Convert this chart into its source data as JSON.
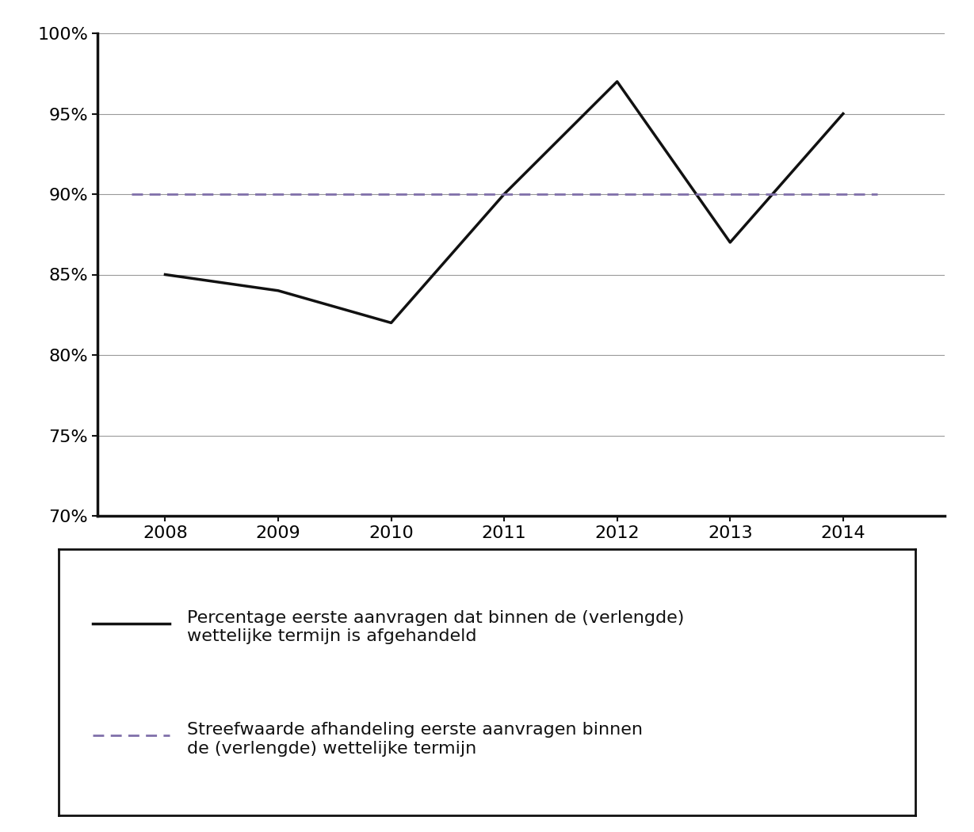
{
  "years": [
    2008,
    2009,
    2010,
    2011,
    2012,
    2013,
    2014
  ],
  "actual_values": [
    0.85,
    0.84,
    0.82,
    0.9,
    0.97,
    0.87,
    0.95
  ],
  "target_value": 0.9,
  "ylim": [
    0.7,
    1.0
  ],
  "yticks": [
    0.7,
    0.75,
    0.8,
    0.85,
    0.9,
    0.95,
    1.0
  ],
  "ytick_labels": [
    "70%",
    "75%",
    "80%",
    "85%",
    "90%",
    "95%",
    "100%"
  ],
  "actual_color": "#111111",
  "target_color": "#8070aa",
  "actual_linewidth": 2.5,
  "target_linewidth": 2.0,
  "legend_label_actual": "Percentage eerste aanvragen dat binnen de (verlengde)\nwettelijke termijn is afgehandeld",
  "legend_label_target": "Streefwaarde afhandeling eerste aanvragen binnen\nde (verlengde) wettelijke termijn",
  "background_color": "#ffffff",
  "grid_color": "#999999",
  "spine_color": "#111111",
  "tick_fontsize": 16,
  "legend_fontsize": 16
}
